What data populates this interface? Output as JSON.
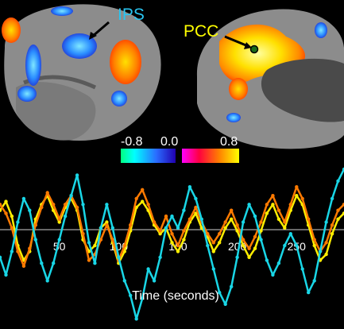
{
  "brain_labels": {
    "ips": "IPS",
    "pcc": "PCC"
  },
  "colors": {
    "ips_label": "#29c4f0",
    "pcc_label": "#ffff00",
    "cortex": "#8c8c8c",
    "yellow_series": "#ffee00",
    "orange_series": "#ff7a00",
    "cyan_series": "#19d6e6"
  },
  "colorbar": {
    "neg_min": "-0.8",
    "zero": "0.0",
    "pos_max": "0.8"
  },
  "chart_data": {
    "type": "line",
    "xlabel": "Time (seconds)",
    "ylabel": "",
    "title": "",
    "xlim": [
      0,
      290
    ],
    "ylim": [
      -3,
      2.2
    ],
    "xticks": [
      50,
      100,
      150,
      200,
      250
    ],
    "series": [
      {
        "color": "#ffee00",
        "x": [
          0,
          5,
          10,
          15,
          20,
          25,
          30,
          35,
          40,
          45,
          50,
          55,
          60,
          65,
          70,
          75,
          80,
          85,
          90,
          95,
          100,
          105,
          110,
          115,
          120,
          125,
          130,
          135,
          140,
          145,
          150,
          155,
          160,
          165,
          170,
          175,
          180,
          185,
          190,
          195,
          200,
          205,
          210,
          215,
          220,
          225,
          230,
          235,
          240,
          245,
          250,
          255,
          260,
          265,
          270,
          275,
          280,
          285,
          290
        ],
        "y": [
          0.8,
          1.1,
          0.6,
          -0.4,
          -0.9,
          -0.6,
          0.5,
          1.0,
          1.3,
          0.8,
          0.4,
          0.9,
          1.2,
          0.8,
          -0.2,
          -0.6,
          -0.4,
          0.2,
          0.4,
          -0.3,
          -1.0,
          -0.6,
          0.1,
          0.9,
          1.1,
          0.8,
          0.3,
          0.0,
          0.2,
          -0.3,
          -0.6,
          -0.2,
          0.4,
          0.7,
          0.2,
          -0.1,
          -0.6,
          -0.3,
          0.2,
          0.5,
          0.1,
          -0.4,
          -0.8,
          -0.5,
          0.1,
          0.7,
          1.0,
          0.5,
          0.2,
          0.8,
          1.3,
          1.0,
          0.3,
          -0.4,
          -0.9,
          -0.7,
          0.0,
          0.5,
          0.7
        ]
      },
      {
        "color": "#ff7a00",
        "x": [
          0,
          5,
          10,
          15,
          20,
          25,
          30,
          35,
          40,
          45,
          50,
          55,
          60,
          65,
          70,
          75,
          80,
          85,
          90,
          95,
          100,
          105,
          110,
          115,
          120,
          125,
          130,
          135,
          140,
          145,
          150,
          155,
          160,
          165,
          170,
          175,
          180,
          185,
          190,
          195,
          200,
          205,
          210,
          215,
          220,
          225,
          230,
          235,
          240,
          245,
          250,
          255,
          260,
          265,
          270,
          275,
          280,
          285,
          290
        ],
        "y": [
          1.0,
          0.7,
          0.2,
          -0.6,
          -1.1,
          -0.5,
          0.3,
          0.9,
          1.4,
          1.0,
          0.5,
          1.0,
          1.3,
          0.9,
          0.0,
          -0.9,
          -0.7,
          -0.2,
          0.3,
          -0.2,
          -0.9,
          -0.4,
          0.3,
          1.2,
          1.5,
          1.0,
          0.4,
          0.1,
          0.6,
          0.0,
          -0.4,
          0.1,
          0.5,
          0.9,
          0.4,
          0.0,
          -0.3,
          0.0,
          0.4,
          0.8,
          0.3,
          -0.2,
          -0.5,
          -0.1,
          0.4,
          1.0,
          1.3,
          0.8,
          0.4,
          1.0,
          1.6,
          1.2,
          0.5,
          -0.2,
          -0.6,
          -0.3,
          0.3,
          0.8,
          1.0
        ]
      },
      {
        "color": "#19d6e6",
        "x": [
          0,
          5,
          10,
          15,
          20,
          25,
          30,
          35,
          40,
          45,
          50,
          55,
          60,
          65,
          70,
          75,
          80,
          85,
          90,
          95,
          100,
          105,
          110,
          115,
          120,
          125,
          130,
          135,
          140,
          145,
          150,
          155,
          160,
          165,
          170,
          175,
          180,
          185,
          190,
          195,
          200,
          205,
          210,
          215,
          220,
          225,
          230,
          235,
          240,
          245,
          250,
          255,
          260,
          265,
          270,
          275,
          280,
          285,
          290
        ],
        "y": [
          -0.8,
          -1.4,
          -0.6,
          0.4,
          1.2,
          0.8,
          -0.2,
          -1.0,
          -1.6,
          -1.0,
          -0.2,
          0.6,
          1.3,
          2.0,
          1.0,
          -0.3,
          -1.0,
          0.2,
          1.0,
          0.2,
          -0.8,
          -1.6,
          -2.1,
          -2.9,
          -2.2,
          -1.2,
          -1.6,
          -0.8,
          0.2,
          0.6,
          0.2,
          0.8,
          1.6,
          1.2,
          0.5,
          -0.4,
          -1.2,
          -2.0,
          -2.4,
          -1.8,
          -0.8,
          0.4,
          1.0,
          0.6,
          -0.2,
          -0.9,
          -1.4,
          -1.0,
          -0.4,
          0.0,
          -0.4,
          -1.2,
          -2.0,
          -1.6,
          -0.6,
          0.4,
          1.2,
          1.8,
          2.2
        ]
      }
    ]
  }
}
